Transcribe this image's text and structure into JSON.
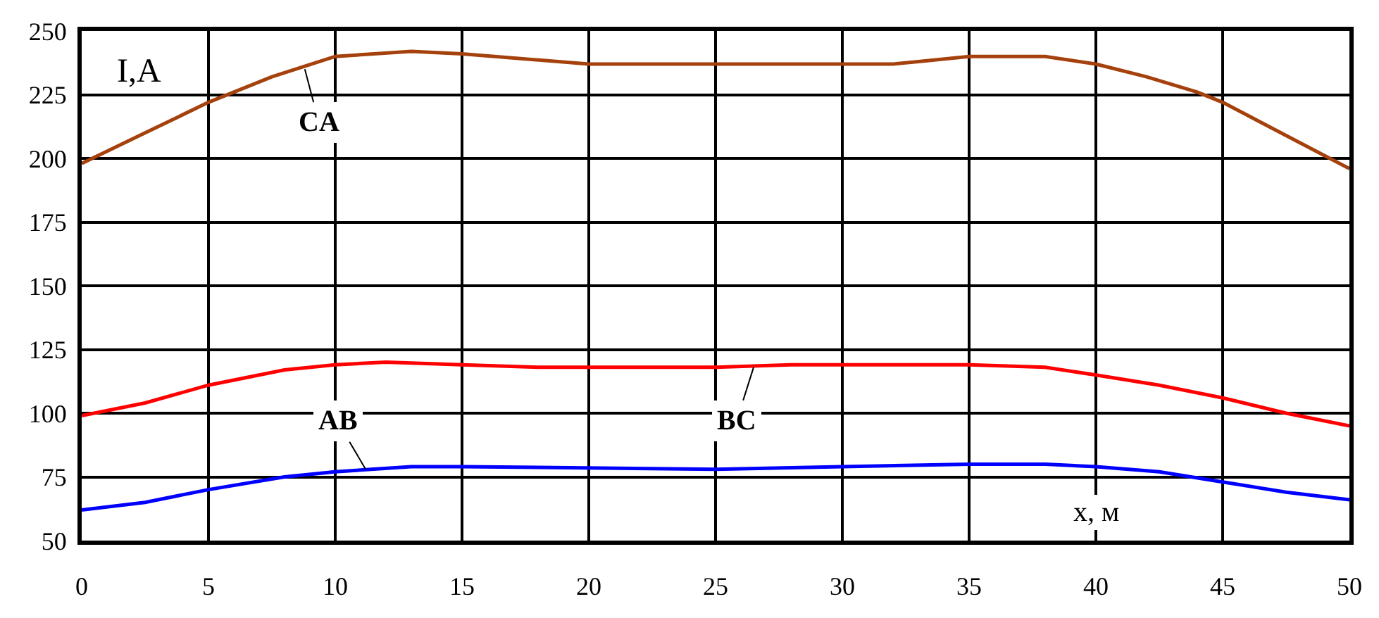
{
  "chart_data": {
    "type": "line",
    "xlabel": "x, м",
    "ylabel": "I,A",
    "xlim": [
      0,
      50
    ],
    "xticks": [
      0,
      5,
      10,
      15,
      20,
      25,
      30,
      35,
      40,
      45,
      50
    ],
    "ylim": [
      50,
      250
    ],
    "yticks": [
      50,
      75,
      100,
      125,
      150,
      175,
      200,
      225,
      250
    ],
    "grid": true,
    "marker": "none",
    "line_style": "solid",
    "series": [
      {
        "color": "#a5410c",
        "x": [
          0,
          2.5,
          5,
          7.5,
          10,
          13,
          15,
          20,
          25,
          32,
          33,
          35,
          38,
          40,
          42,
          44,
          45,
          47.5,
          50
        ],
        "values": [
          198,
          210,
          222,
          232,
          240,
          242,
          241,
          237,
          237,
          237,
          238,
          240,
          240,
          237,
          232,
          226,
          222,
          209,
          196
        ]
      },
      {
        "color": "#ff0000",
        "x": [
          0,
          2.5,
          5,
          8,
          10,
          12,
          15,
          18,
          25,
          28,
          35,
          38,
          40,
          42.5,
          45,
          47.5,
          50
        ],
        "values": [
          99,
          104,
          111,
          117,
          119,
          120,
          119,
          118,
          118,
          119,
          119,
          118,
          115,
          111,
          106,
          100,
          95
        ]
      },
      {
        "color": "#0000ff",
        "x": [
          0,
          2.5,
          5,
          8,
          10,
          13,
          15,
          25,
          30,
          35,
          38,
          40,
          42.5,
          45,
          47.5,
          50
        ],
        "values": [
          62,
          65,
          70,
          75,
          77,
          79,
          79,
          78,
          79,
          80,
          80,
          79,
          77,
          73,
          69,
          66
        ]
      }
    ],
    "annotations": [
      {
        "text": "CA",
        "x": 8.8,
        "y": 235
      },
      {
        "text": "BC",
        "x": 26.5,
        "y": 118
      },
      {
        "text": "AB",
        "x": 11.2,
        "y": 78
      }
    ]
  }
}
